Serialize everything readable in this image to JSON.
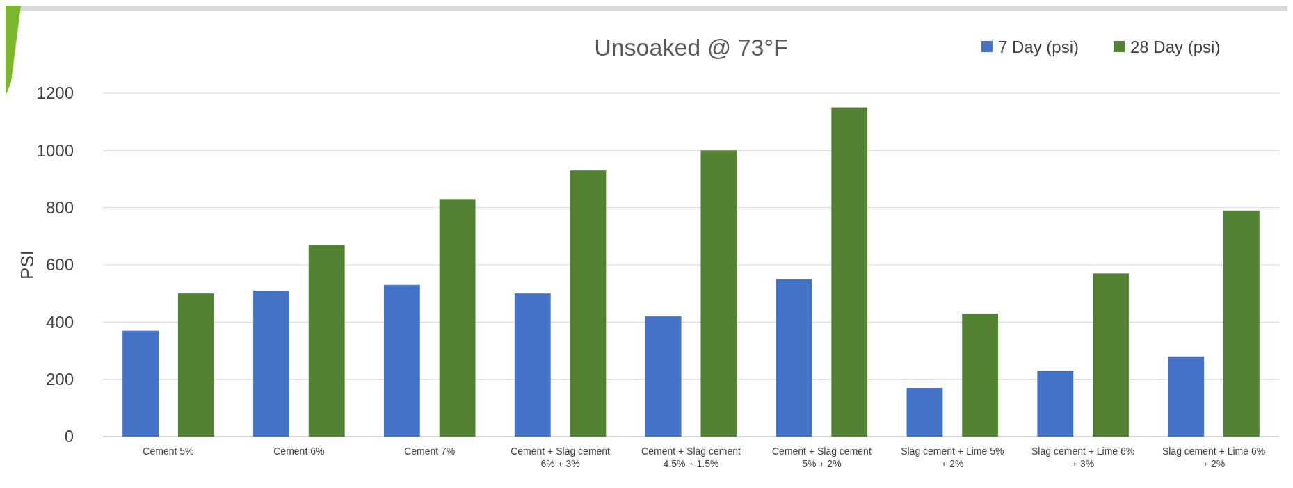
{
  "chart_data": {
    "type": "bar",
    "title": "Unsoaked @ 73°F",
    "ylabel": "PSI",
    "categories": [
      "Cement 5%",
      "Cement 6%",
      "Cement 7%",
      "Cement + Slag cement 6% + 3%",
      "Cement + Slag cement 4.5% + 1.5%",
      "Cement + Slag cement 5% + 2%",
      "Slag cement + Lime 5% + 2%",
      "Slag cement + Lime 6% + 3%",
      "Slag cement + Lime 6% + 2%"
    ],
    "series": [
      {
        "name": "7 Day (psi)",
        "color": "#4472c4",
        "values": [
          370,
          510,
          530,
          500,
          420,
          550,
          170,
          230,
          280
        ]
      },
      {
        "name": "28 Day (psi)",
        "color": "#548235",
        "values": [
          500,
          670,
          830,
          930,
          1000,
          1150,
          430,
          570,
          790
        ]
      }
    ],
    "ylim": [
      0,
      1200
    ],
    "yticks": [
      0,
      200,
      400,
      600,
      800,
      1000,
      1200
    ],
    "grid": "y",
    "legend": "top right"
  }
}
